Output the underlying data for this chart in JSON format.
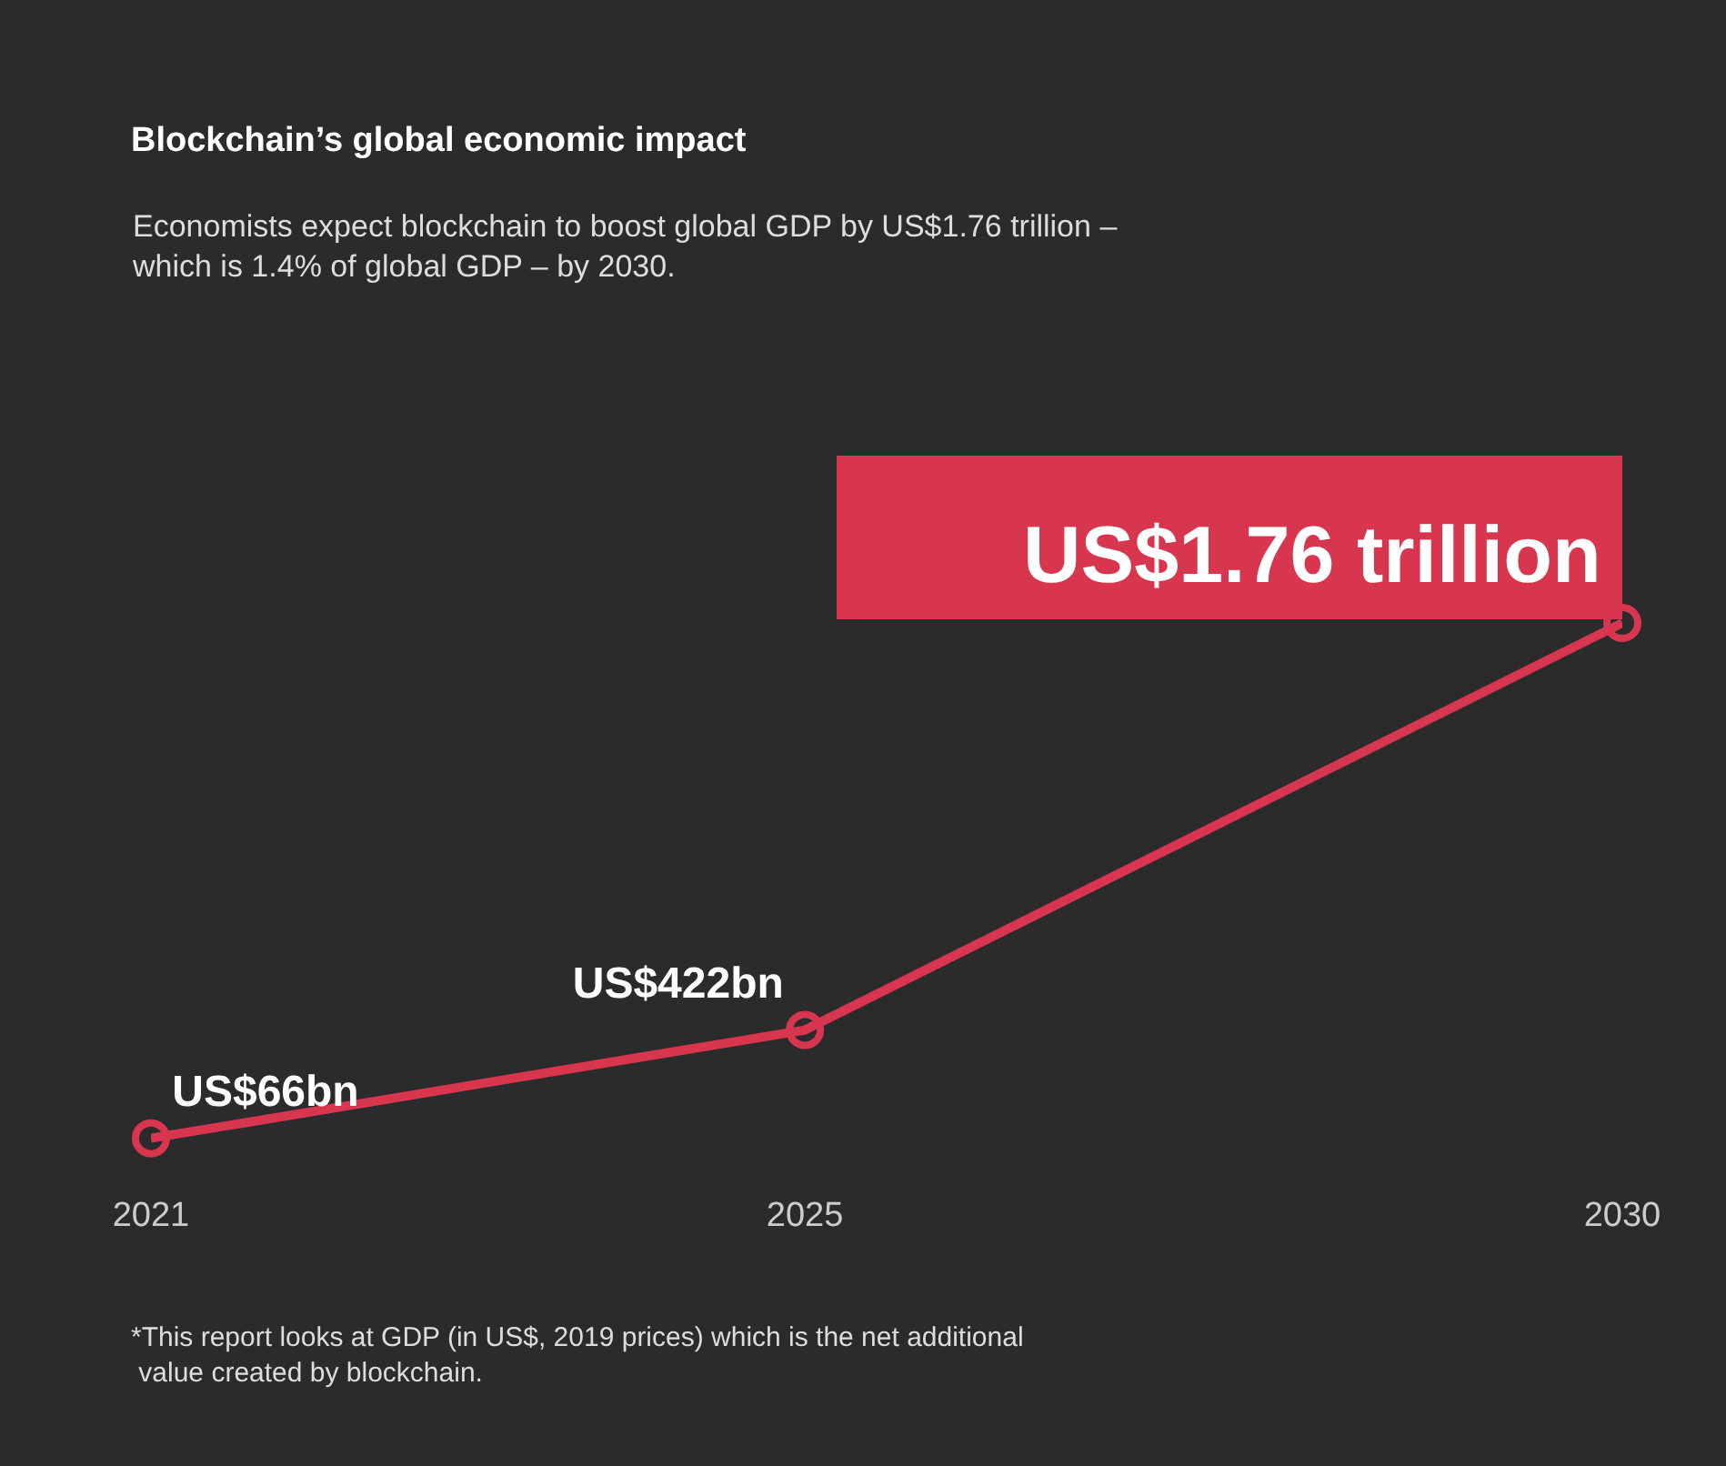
{
  "chart_data": {
    "type": "line",
    "title": "Blockchain’s global economic impact",
    "subtitle": "Economists expect blockchain to boost global GDP by US$1.76 trillion –\nwhich is 1.4% of global GDP – by 2030.",
    "x": [
      2021,
      2025,
      2030
    ],
    "xlim": [
      2021,
      2030
    ],
    "xticks": [
      2021,
      2025,
      2030
    ],
    "color": "#d8364f",
    "values": [
      66000000000,
      422000000000,
      1760000000000
    ],
    "value_labels": [
      "US$66bn",
      "US$422bn",
      "US$1.76 trillion"
    ],
    "marker": "circle",
    "line_style": "solid",
    "tick_labels": "x",
    "annotations": [
      "*This report looks at GDP (in US$, 2019 prices) which is the net additional\n value created by blockchain."
    ]
  }
}
